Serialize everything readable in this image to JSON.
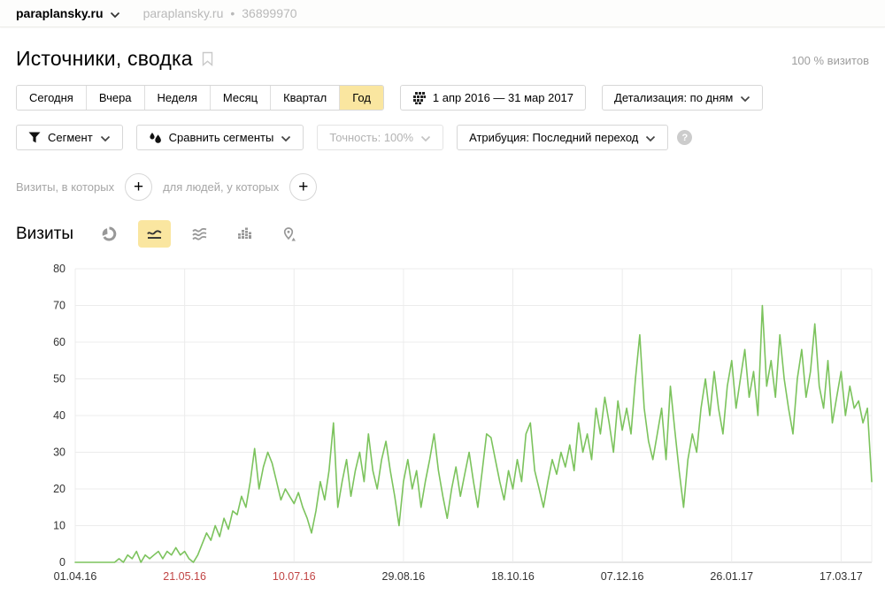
{
  "topbar": {
    "site": "paraplansky.ru",
    "site_meta": "paraplansky.ru",
    "separator": "•",
    "counter_id": "36899970"
  },
  "header": {
    "title": "Источники, сводка",
    "visits_share": "100 % визитов"
  },
  "period_tabs": {
    "items": [
      "Сегодня",
      "Вчера",
      "Неделя",
      "Месяц",
      "Квартал",
      "Год"
    ],
    "selected": "Год",
    "selected_bg": "#fae6a0"
  },
  "date_range": {
    "label": "1 апр 2016 — 31 мар 2017",
    "icon": "calendar-grid-icon"
  },
  "detalization": {
    "label": "Детализация: по дням"
  },
  "segment_controls": {
    "segment_label": "Сегмент",
    "segment_icon": "funnel-icon",
    "compare_label": "Сравнить сегменты",
    "compare_icon": "two-drops-icon",
    "accuracy_label": "Точность: 100%",
    "accuracy_disabled": true,
    "attribution_label": "Атрибуция: Последний переход",
    "help_icon": "question-help-icon"
  },
  "filters": {
    "visits_label": "Визиты, в которых",
    "people_label": "для людей, у которых",
    "add_symbol": "+"
  },
  "metric": {
    "title": "Визиты",
    "chart_types": [
      "pie-chart-icon",
      "line-chart-icon",
      "stacked-waves-icon",
      "columns-chart-icon",
      "map-pin-icon"
    ],
    "selected_type": "line-chart-icon"
  },
  "chart_data": {
    "type": "line",
    "title": "Визиты",
    "ylabel": "",
    "xlabel": "",
    "ylim": [
      0,
      80
    ],
    "yticks": [
      0,
      10,
      20,
      30,
      40,
      50,
      60,
      70,
      80
    ],
    "grid": true,
    "x_total_days": 364,
    "xticks": [
      {
        "day": 0,
        "label": "01.04.16",
        "color": "#333333"
      },
      {
        "day": 50,
        "label": "21.05.16",
        "color": "#c14444"
      },
      {
        "day": 100,
        "label": "10.07.16",
        "color": "#c14444"
      },
      {
        "day": 150,
        "label": "29.08.16",
        "color": "#333333"
      },
      {
        "day": 200,
        "label": "18.10.16",
        "color": "#333333"
      },
      {
        "day": 250,
        "label": "07.12.16",
        "color": "#333333"
      },
      {
        "day": 300,
        "label": "26.01.17",
        "color": "#333333"
      },
      {
        "day": 350,
        "label": "17.03.17",
        "color": "#333333"
      }
    ],
    "series": [
      {
        "name": "Визиты",
        "color": "#7cc35d",
        "x_start_day": 0,
        "x_step_days": 2,
        "values": [
          0,
          0,
          0,
          0,
          0,
          0,
          0,
          0,
          0,
          0,
          1,
          0,
          2,
          1,
          3,
          0,
          2,
          1,
          2,
          3,
          1,
          3,
          2,
          4,
          2,
          3,
          1,
          0,
          2,
          5,
          8,
          6,
          10,
          7,
          12,
          9,
          14,
          13,
          18,
          15,
          22,
          31,
          20,
          26,
          30,
          27,
          22,
          17,
          20,
          18,
          16,
          19,
          15,
          12,
          8,
          14,
          22,
          17,
          25,
          38,
          15,
          22,
          28,
          18,
          25,
          30,
          22,
          35,
          25,
          20,
          28,
          33,
          25,
          18,
          10,
          22,
          28,
          20,
          25,
          15,
          22,
          28,
          35,
          25,
          18,
          12,
          20,
          26,
          18,
          24,
          30,
          22,
          15,
          25,
          35,
          34,
          28,
          22,
          17,
          25,
          20,
          28,
          22,
          35,
          38,
          25,
          20,
          15,
          22,
          28,
          24,
          30,
          26,
          32,
          25,
          38,
          30,
          35,
          28,
          42,
          35,
          45,
          38,
          30,
          44,
          36,
          42,
          35,
          50,
          62,
          42,
          33,
          28,
          35,
          42,
          28,
          48,
          36,
          25,
          15,
          28,
          35,
          30,
          42,
          50,
          40,
          52,
          42,
          35,
          48,
          55,
          42,
          50,
          58,
          45,
          52,
          40,
          70,
          48,
          55,
          45,
          62,
          50,
          42,
          35,
          50,
          58,
          45,
          52,
          65,
          48,
          42,
          55,
          38,
          45,
          52,
          40,
          48,
          42,
          44,
          38,
          42,
          22
        ]
      }
    ]
  }
}
